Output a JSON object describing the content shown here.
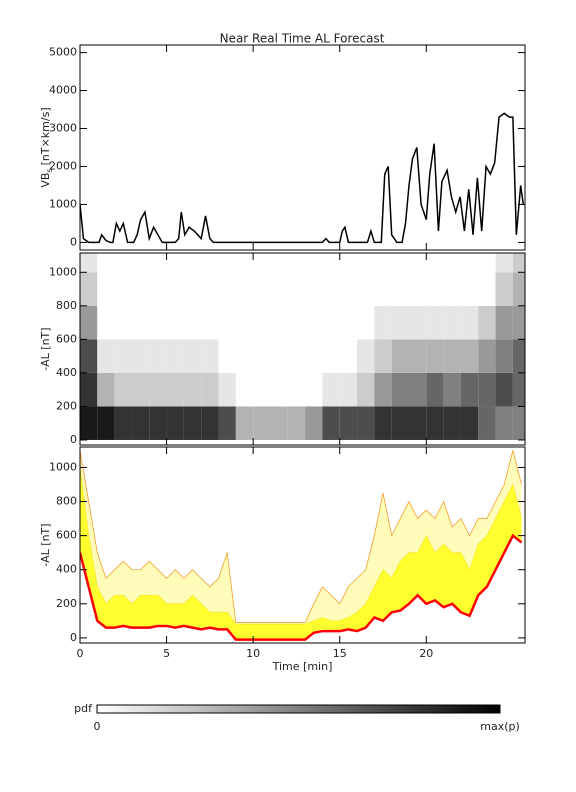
{
  "chart_data": [
    {
      "type": "line",
      "title": "Near Real Time AL Forecast",
      "ylabel": "VB",
      "ylabel_sub": "s",
      "ylabel_unit": "[nT×km/s]",
      "xlim": [
        0,
        25.7
      ],
      "xticks": [
        0,
        5,
        10,
        15,
        20
      ],
      "ylim": [
        -200,
        5200
      ],
      "yticks": [
        0,
        1000,
        2000,
        3000,
        4000,
        5000
      ],
      "x": [
        0,
        0.2,
        0.5,
        1.1,
        1.25,
        1.5,
        1.75,
        1.9,
        2.1,
        2.3,
        2.5,
        2.75,
        3.1,
        3.3,
        3.5,
        3.75,
        4,
        4.25,
        4.5,
        4.75,
        5.5,
        5.7,
        5.85,
        6.05,
        6.3,
        6.6,
        6.8,
        7,
        7.25,
        7.5,
        7.7,
        14,
        14.2,
        14.4,
        15,
        15.15,
        15.3,
        15.5,
        16.6,
        16.8,
        17,
        17.4,
        17.6,
        17.8,
        18,
        18.3,
        18.6,
        18.8,
        19,
        19.2,
        19.45,
        19.7,
        20,
        20.2,
        20.45,
        20.7,
        20.9,
        21.2,
        21.45,
        21.7,
        21.95,
        22.2,
        22.45,
        22.7,
        22.95,
        23.2,
        23.45,
        23.7,
        23.95,
        24.2,
        24.5,
        24.8,
        25,
        25.2,
        25.45,
        25.6
      ],
      "series": [
        {
          "color": "#000000",
          "values": [
            1000,
            100,
            0,
            0,
            200,
            50,
            0,
            0,
            500,
            300,
            500,
            0,
            0,
            200,
            600,
            800,
            100,
            400,
            200,
            0,
            0,
            100,
            800,
            200,
            400,
            300,
            200,
            100,
            700,
            100,
            0,
            0,
            100,
            0,
            0,
            300,
            400,
            0,
            0,
            300,
            0,
            0,
            1800,
            2000,
            200,
            0,
            0,
            500,
            1500,
            2200,
            2500,
            1000,
            600,
            1800,
            2600,
            300,
            1600,
            1900,
            1200,
            800,
            1200,
            300,
            1400,
            200,
            1700,
            300,
            2000,
            1800,
            2100,
            3300,
            3400,
            3300,
            3300,
            200,
            1500,
            1000
          ]
        }
      ]
    },
    {
      "type": "heatmap",
      "ylabel": "-AL [nT]",
      "xlim": [
        0,
        25.7
      ],
      "xticks": [
        0,
        5,
        10,
        15,
        20
      ],
      "ylim": [
        -30,
        1115
      ],
      "yticks": [
        0,
        200,
        400,
        600,
        800,
        1000
      ],
      "xbins": [
        0,
        1,
        2,
        3,
        4,
        5,
        6,
        7,
        8,
        9,
        10,
        11,
        12,
        13,
        14,
        15,
        16,
        17,
        18,
        19,
        20,
        21,
        22,
        23,
        24,
        25,
        26
      ],
      "ybins": [
        0,
        200,
        400,
        600,
        800,
        1000,
        1200
      ],
      "z": [
        [
          0.9,
          0.8,
          0.7,
          0.4,
          0.2,
          0.1
        ],
        [
          0.9,
          0.3,
          0.1,
          0,
          0,
          0
        ],
        [
          0.8,
          0.2,
          0.1,
          0,
          0,
          0
        ],
        [
          0.8,
          0.2,
          0.1,
          0,
          0,
          0
        ],
        [
          0.8,
          0.2,
          0.1,
          0,
          0,
          0
        ],
        [
          0.8,
          0.2,
          0.1,
          0,
          0,
          0
        ],
        [
          0.8,
          0.2,
          0.1,
          0,
          0,
          0
        ],
        [
          0.8,
          0.2,
          0.1,
          0,
          0,
          0
        ],
        [
          0.7,
          0.1,
          0,
          0,
          0,
          0
        ],
        [
          0.3,
          0,
          0,
          0,
          0,
          0
        ],
        [
          0.3,
          0,
          0,
          0,
          0,
          0
        ],
        [
          0.3,
          0,
          0,
          0,
          0,
          0
        ],
        [
          0.3,
          0,
          0,
          0,
          0,
          0
        ],
        [
          0.4,
          0,
          0,
          0,
          0,
          0
        ],
        [
          0.7,
          0.1,
          0,
          0,
          0,
          0
        ],
        [
          0.7,
          0.1,
          0,
          0,
          0,
          0
        ],
        [
          0.7,
          0.2,
          0.1,
          0,
          0,
          0
        ],
        [
          0.8,
          0.4,
          0.2,
          0.1,
          0,
          0
        ],
        [
          0.8,
          0.5,
          0.3,
          0.1,
          0,
          0
        ],
        [
          0.8,
          0.5,
          0.3,
          0.1,
          0,
          0
        ],
        [
          0.8,
          0.6,
          0.3,
          0.1,
          0,
          0
        ],
        [
          0.8,
          0.5,
          0.3,
          0.1,
          0,
          0
        ],
        [
          0.8,
          0.6,
          0.3,
          0.1,
          0,
          0
        ],
        [
          0.6,
          0.6,
          0.4,
          0.2,
          0,
          0
        ],
        [
          0.5,
          0.7,
          0.5,
          0.4,
          0.2,
          0.1
        ],
        [
          0.5,
          0.6,
          0.6,
          0.4,
          0.3,
          0.2
        ]
      ]
    },
    {
      "type": "area",
      "ylabel": "-AL [nT]",
      "xlabel": "Time [min]",
      "xlim": [
        0,
        25.7
      ],
      "xticks": [
        0,
        5,
        10,
        15,
        20
      ],
      "ylim": [
        -30,
        1120
      ],
      "yticks": [
        0,
        200,
        400,
        600,
        800,
        1000
      ],
      "x": [
        0,
        0.5,
        1,
        1.5,
        2,
        2.5,
        3,
        3.5,
        4,
        4.5,
        5,
        5.5,
        6,
        6.5,
        7,
        7.5,
        8,
        8.5,
        9,
        9.5,
        10,
        10.5,
        11,
        11.5,
        12,
        12.5,
        13,
        13.5,
        14,
        14.5,
        15,
        15.5,
        16,
        16.5,
        17,
        17.5,
        18,
        18.5,
        19,
        19.5,
        20,
        20.5,
        21,
        21.5,
        22,
        22.5,
        23,
        23.5,
        24,
        24.5,
        25,
        25.5
      ],
      "series": [
        {
          "color": "#f0a030",
          "fill": "#fffbb8",
          "values": [
            1100,
            800,
            500,
            350,
            400,
            450,
            400,
            400,
            450,
            400,
            350,
            400,
            350,
            400,
            350,
            300,
            350,
            500,
            90,
            90,
            90,
            90,
            90,
            90,
            90,
            90,
            90,
            200,
            300,
            250,
            200,
            300,
            350,
            400,
            600,
            850,
            600,
            700,
            800,
            700,
            750,
            700,
            800,
            650,
            700,
            600,
            700,
            700,
            800,
            900,
            1100,
            900
          ]
        },
        {
          "color": "#f8e830",
          "fill": "#ffff30",
          "values": [
            1000,
            600,
            300,
            200,
            250,
            250,
            200,
            250,
            250,
            250,
            200,
            200,
            200,
            250,
            200,
            150,
            150,
            150,
            80,
            80,
            80,
            80,
            80,
            80,
            80,
            80,
            80,
            100,
            120,
            100,
            100,
            120,
            150,
            200,
            300,
            400,
            350,
            450,
            500,
            500,
            600,
            500,
            550,
            500,
            500,
            400,
            550,
            600,
            700,
            800,
            900,
            700
          ]
        },
        {
          "color": "#ff0000",
          "values": [
            500,
            300,
            100,
            60,
            60,
            70,
            60,
            60,
            60,
            70,
            70,
            60,
            70,
            60,
            50,
            60,
            50,
            50,
            -10,
            -10,
            -10,
            -10,
            -10,
            -10,
            -10,
            -10,
            -10,
            30,
            40,
            40,
            40,
            50,
            40,
            60,
            120,
            100,
            150,
            160,
            200,
            250,
            200,
            220,
            180,
            200,
            150,
            130,
            250,
            300,
            400,
            500,
            600,
            560
          ]
        }
      ]
    }
  ],
  "colorbar": {
    "label": "pdf",
    "min_label": "0",
    "max_label": "max(p)"
  }
}
